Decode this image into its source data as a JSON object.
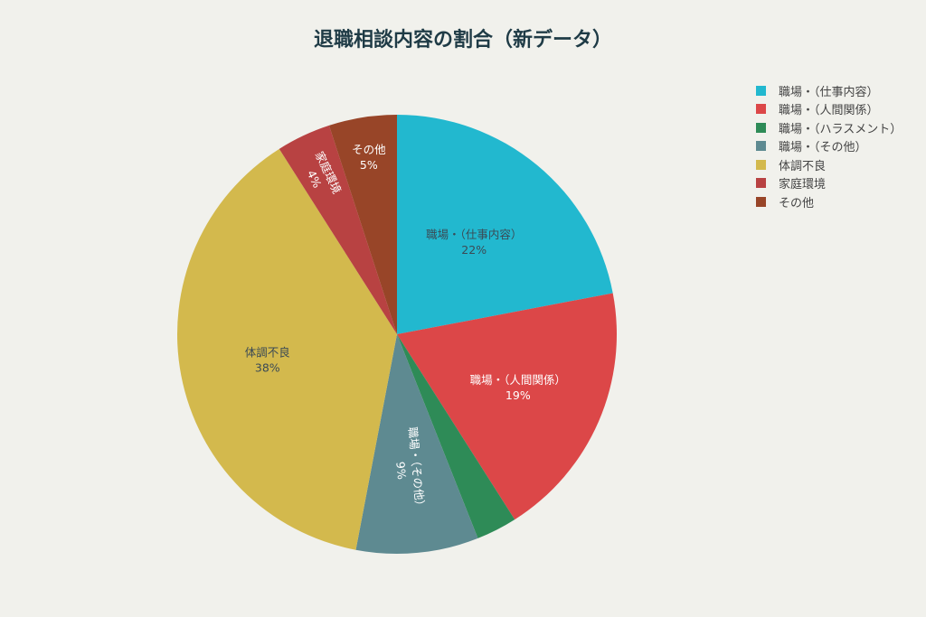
{
  "chart_data": {
    "type": "pie",
    "title": "退職相談内容の割合（新データ）",
    "categories": [
      "職場・（仕事内容）",
      "職場・（人間関係）",
      "職場・（ハラスメント）",
      "職場・（その他）",
      "体調不良",
      "家庭環境",
      "その他"
    ],
    "values": [
      22,
      19,
      3,
      9,
      38,
      4,
      5
    ],
    "unit": "%",
    "colors": [
      "#22b8cf",
      "#dc4748",
      "#2e8b57",
      "#5e8a91",
      "#d3b94d",
      "#b84242",
      "#984528"
    ],
    "data_labels": [
      {
        "name": "職場・（仕事内容）",
        "pct": "22%",
        "shown": true
      },
      {
        "name": "職場・（人間関係）",
        "pct": "19%",
        "shown": true
      },
      {
        "name": "職場・（ハラスメント）",
        "pct": "3%",
        "shown": false
      },
      {
        "name": "職場・（その他）",
        "pct": "9%",
        "shown": true
      },
      {
        "name": "体調不良",
        "pct": "38%",
        "shown": true
      },
      {
        "name": "家庭環境",
        "pct": "4%",
        "shown": true
      },
      {
        "name": "その他",
        "pct": "5%",
        "shown": true
      }
    ],
    "start_angle": "12 o'clock",
    "direction": "clockwise",
    "legend_position": "top-right"
  },
  "title": "退職相談内容の割合（新データ）",
  "legend": {
    "items": [
      {
        "label": "職場・（仕事内容）",
        "color": "#22b8cf"
      },
      {
        "label": "職場・（人間関係）",
        "color": "#dc4748"
      },
      {
        "label": "職場・（ハラスメント）",
        "color": "#2e8b57"
      },
      {
        "label": "職場・（その他）",
        "color": "#5e8a91"
      },
      {
        "label": "体調不良",
        "color": "#d3b94d"
      },
      {
        "label": "家庭環境",
        "color": "#b84242"
      },
      {
        "label": "その他",
        "color": "#984528"
      }
    ]
  }
}
